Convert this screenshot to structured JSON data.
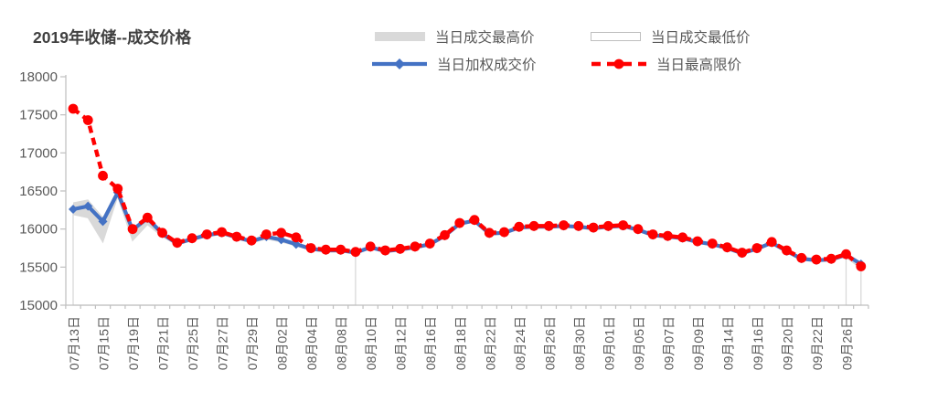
{
  "title": "2019年收储--成交价格",
  "legend": {
    "items": [
      {
        "label": "当日成交最高价",
        "style": "area-gray"
      },
      {
        "label": "当日成交最低价",
        "style": "area-white-outline"
      },
      {
        "label": "当日加权成交价",
        "style": "line-diamond"
      },
      {
        "label": "当日最高限价",
        "style": "dashed-line-circle"
      }
    ]
  },
  "colors": {
    "accent_blue": "#4472C4",
    "accent_red": "#FF0000",
    "band_gray": "#D9D9D9",
    "area_border_gray": "#D9D9D9",
    "white": "#FFFFFF",
    "axis_gray": "#BFBFBF",
    "tick_text_gray": "#595959",
    "title_gray": "#404040"
  },
  "chart_data": {
    "type": "line",
    "title": "2019年收储--成交价格",
    "legend_position": "top",
    "grid": false,
    "y_axis": {
      "min": 15000,
      "max": 18000,
      "step": 500,
      "tick_labels": [
        "15000",
        "15500",
        "16000",
        "16500",
        "17000",
        "17500",
        "18000"
      ]
    },
    "x_axis": {
      "n_points": 54,
      "label_interval": 2,
      "tick_labels": [
        "07月13日",
        "07月15日",
        "07月19日",
        "07月21日",
        "07月25日",
        "07月27日",
        "07月29日",
        "08月02日",
        "08月04日",
        "08月08日",
        "08月10日",
        "08月12日",
        "08月16日",
        "08月18日",
        "08月22日",
        "08月24日",
        "08月26日",
        "08月30日",
        "09月01日",
        "09月05日",
        "09月07日",
        "09月09日",
        "09月14日",
        "09月16日",
        "09月20日",
        "09月22日",
        "09月26日"
      ]
    },
    "series": [
      {
        "name": "当日成交最高价",
        "type": "area",
        "color_key": "band_gray",
        "marker": "none",
        "values": [
          16350,
          16390,
          16160,
          16530,
          16010,
          16150,
          15950,
          15820,
          15880,
          15930,
          15960,
          15900,
          15850,
          15920,
          15880,
          15820,
          15750,
          15730,
          15730,
          15700,
          null,
          null,
          null,
          null,
          null,
          null,
          null,
          null,
          null,
          null,
          null,
          null,
          null,
          null,
          null,
          null,
          null,
          null,
          null,
          null,
          null,
          null,
          null,
          null,
          null,
          null,
          null,
          null,
          null,
          null,
          null,
          null,
          15680,
          15560
        ]
      },
      {
        "name": "当日成交最低价",
        "type": "area",
        "color_key": "white",
        "border_key": "area_border_gray",
        "marker": "none",
        "values": [
          16190,
          16150,
          15830,
          16430,
          15850,
          16060,
          15900,
          15790,
          15850,
          15900,
          15930,
          15870,
          15820,
          15870,
          15830,
          15780,
          15720,
          15700,
          15700,
          15680,
          null,
          null,
          null,
          null,
          null,
          null,
          null,
          null,
          null,
          null,
          null,
          null,
          null,
          null,
          null,
          null,
          null,
          null,
          null,
          null,
          null,
          null,
          null,
          null,
          null,
          null,
          null,
          null,
          null,
          null,
          null,
          null,
          15630,
          15480
        ]
      },
      {
        "name": "当日加权成交价",
        "type": "line",
        "color_key": "accent_blue",
        "marker": "diamond",
        "values": [
          16260,
          16300,
          16100,
          16480,
          15990,
          16140,
          15940,
          15810,
          15870,
          15920,
          15950,
          15890,
          15840,
          15900,
          15860,
          15800,
          15740,
          15720,
          15720,
          15690,
          15760,
          15710,
          15730,
          15760,
          15800,
          15910,
          16070,
          16110,
          15940,
          15950,
          16020,
          16030,
          16030,
          16040,
          16030,
          16010,
          16030,
          16040,
          15990,
          15920,
          15900,
          15880,
          15830,
          15800,
          15750,
          15680,
          15740,
          15820,
          15710,
          15610,
          15590,
          15600,
          15660,
          15540
        ]
      },
      {
        "name": "当日最高限价",
        "type": "line-dashed",
        "color_key": "accent_red",
        "marker": "circle",
        "values": [
          17580,
          17430,
          16700,
          16530,
          16000,
          16150,
          15950,
          15820,
          15880,
          15930,
          15960,
          15900,
          15850,
          15930,
          15950,
          15890,
          15750,
          15730,
          15730,
          15700,
          15770,
          15720,
          15740,
          15770,
          15810,
          15920,
          16080,
          16120,
          15950,
          15960,
          16030,
          16040,
          16040,
          16050,
          16040,
          16020,
          16040,
          16050,
          16000,
          15930,
          15910,
          15890,
          15840,
          15810,
          15760,
          15690,
          15750,
          15830,
          15720,
          15620,
          15600,
          15610,
          15670,
          15510
        ]
      }
    ]
  }
}
